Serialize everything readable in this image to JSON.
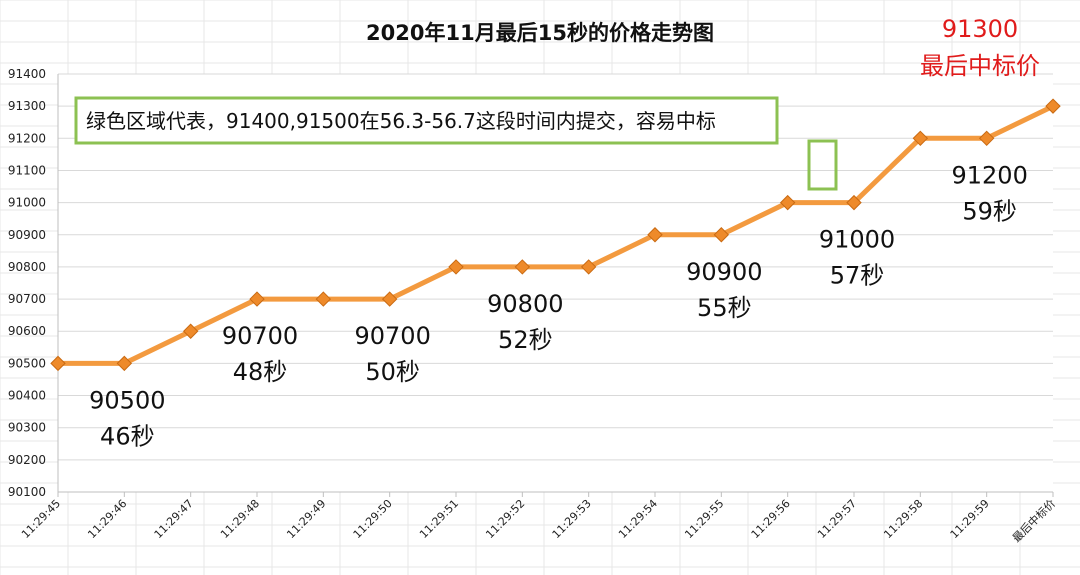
{
  "chart_data": {
    "type": "line",
    "title": "2020年11月最后15秒的价格走势图",
    "xlabel": "",
    "ylabel": "",
    "categories": [
      "11:29:45",
      "11:29:46",
      "11:29:47",
      "11:29:48",
      "11:29:49",
      "11:29:50",
      "11:29:51",
      "11:29:52",
      "11:29:53",
      "11:29:54",
      "11:29:55",
      "11:29:56",
      "11:29:57",
      "11:29:58",
      "11:29:59",
      "最后中标价"
    ],
    "series": [
      {
        "values": [
          90500,
          90500,
          90600,
          90700,
          90700,
          90700,
          90800,
          90800,
          90800,
          90900,
          90900,
          91000,
          91000,
          91200,
          91200,
          91300
        ]
      }
    ],
    "ylim": [
      90100,
      91400
    ],
    "yticks": [
      90100,
      90200,
      90300,
      90400,
      90500,
      90600,
      90700,
      90800,
      90900,
      91000,
      91100,
      91200,
      91300,
      91400
    ],
    "grid": true,
    "legend": "none",
    "line_color": "#f39a3f",
    "marker_color": "#ee8a2a",
    "annotations": [
      {
        "lines": [
          "90500",
          "46秒"
        ],
        "index": 1
      },
      {
        "lines": [
          "90700",
          "48秒"
        ],
        "index": 3
      },
      {
        "lines": [
          "90700",
          "50秒"
        ],
        "index": 5
      },
      {
        "lines": [
          "90800",
          "52秒"
        ],
        "index": 7
      },
      {
        "lines": [
          "90900",
          "55秒"
        ],
        "index": 10
      },
      {
        "lines": [
          "91000",
          "57秒"
        ],
        "index": 12
      },
      {
        "lines": [
          "91200",
          "59秒"
        ],
        "index": 14
      }
    ],
    "final_annotation": {
      "lines": [
        "91300",
        "最后中标价"
      ],
      "color": "#e01b1b"
    },
    "note": "绿色区域代表，91400,91500在56.3-56.7这段时间内提交，容易中标",
    "note_border_color": "#8cc152"
  }
}
